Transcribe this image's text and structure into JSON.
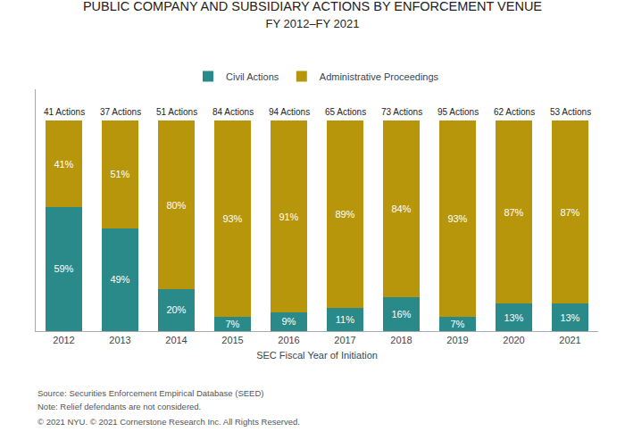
{
  "chart_data": {
    "type": "bar",
    "stacked": true,
    "title": "PUBLIC COMPANY AND SUBSIDIARY ACTIONS BY ENFORCEMENT VENUE",
    "subtitle": "FY 2012–FY 2021",
    "x_label": "SEC Fiscal Year of Initiation",
    "categories": [
      "2012",
      "2013",
      "2014",
      "2015",
      "2016",
      "2017",
      "2018",
      "2019",
      "2020",
      "2021"
    ],
    "series": [
      {
        "name": "Civil Actions",
        "color": "#2a8a8a",
        "values": [
          59,
          49,
          20,
          7,
          9,
          11,
          16,
          7,
          13,
          13
        ],
        "value_labels": [
          "59%",
          "49%",
          "20%",
          "7%",
          "9%",
          "11%",
          "16%",
          "7%",
          "13%",
          "13%"
        ]
      },
      {
        "name": "Administrative Proceedings",
        "color": "#b8960c",
        "values": [
          41,
          51,
          80,
          93,
          91,
          89,
          84,
          93,
          87,
          87
        ],
        "value_labels": [
          "41%",
          "51%",
          "80%",
          "93%",
          "91%",
          "89%",
          "84%",
          "93%",
          "87%",
          "87%"
        ]
      }
    ],
    "annotations": [
      "41 Actions",
      "37 Actions",
      "51 Actions",
      "84 Actions",
      "94 Actions",
      "65 Actions",
      "73 Actions",
      "95 Actions",
      "62 Actions",
      "53 Actions"
    ],
    "footnotes": [
      "Source: Securities Enforcement Empirical Database (SEED)",
      "Note: Relief defendants are not considered.",
      "© 2021 NYU. © 2021 Cornerstone Research Inc. All Rights Reserved."
    ],
    "ylim": [
      0,
      115
    ],
    "data_labels": true,
    "tick_labels": "x",
    "grid": false,
    "legend": "upper center"
  }
}
